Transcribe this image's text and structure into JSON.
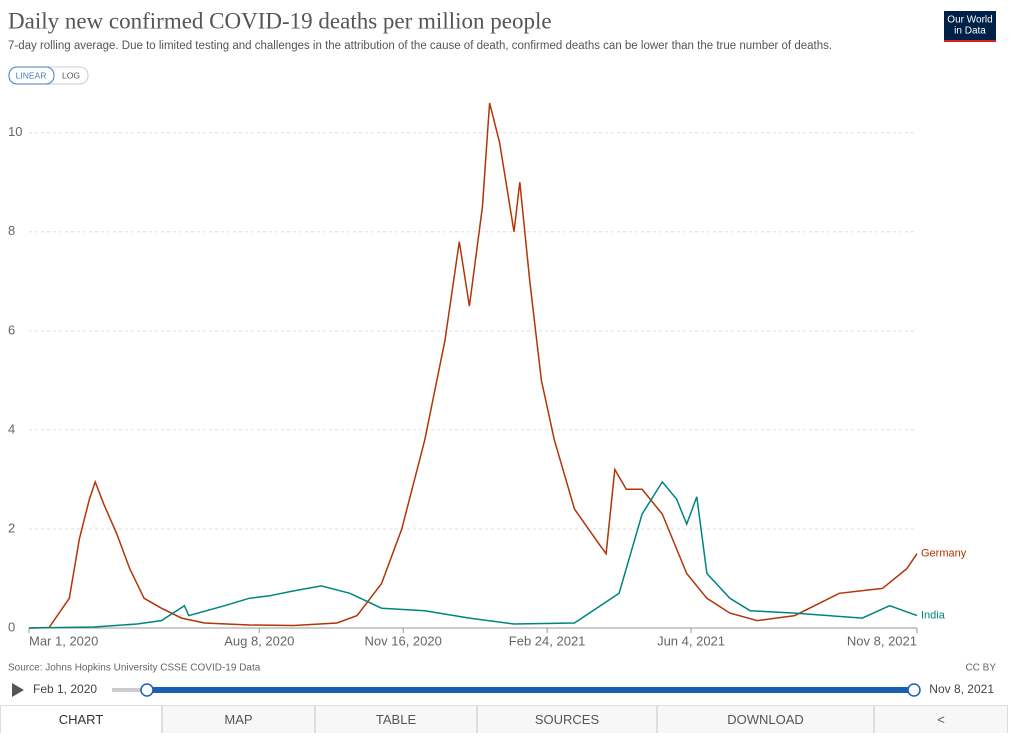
{
  "chart_data": {
    "type": "line",
    "title": "Daily new confirmed COVID-19 deaths per million people",
    "subtitle": "7-day rolling average. Due to limited testing and challenges in the attribution of the cause of death, confirmed deaths can be lower than the true number of deaths.",
    "xlim": [
      "2020-03-01",
      "2021-11-08"
    ],
    "xticks": [
      {
        "value": "2020-03-01",
        "label": "Mar 1, 2020"
      },
      {
        "value": "2020-08-08",
        "label": "Aug 8, 2020"
      },
      {
        "value": "2020-11-16",
        "label": "Nov 16, 2020"
      },
      {
        "value": "2021-02-24",
        "label": "Feb 24, 2021"
      },
      {
        "value": "2021-06-04",
        "label": "Jun 4, 2021"
      },
      {
        "value": "2021-11-08",
        "label": "Nov 8, 2021"
      }
    ],
    "ylim": [
      0,
      10.6
    ],
    "yticks": [
      0,
      2,
      4,
      6,
      8,
      10
    ],
    "grid": true,
    "series": [
      {
        "name": "Germany",
        "color": "#b13507",
        "x": [
          "2020-03-01",
          "2020-03-15",
          "2020-03-29",
          "2020-04-05",
          "2020-04-12",
          "2020-04-16",
          "2020-04-22",
          "2020-05-01",
          "2020-05-10",
          "2020-05-20",
          "2020-06-01",
          "2020-06-15",
          "2020-07-01",
          "2020-08-01",
          "2020-09-01",
          "2020-10-01",
          "2020-10-15",
          "2020-11-01",
          "2020-11-15",
          "2020-12-01",
          "2020-12-15",
          "2020-12-25",
          "2021-01-01",
          "2021-01-10",
          "2021-01-15",
          "2021-01-22",
          "2021-02-01",
          "2021-02-05",
          "2021-02-12",
          "2021-02-20",
          "2021-03-01",
          "2021-03-15",
          "2021-04-01",
          "2021-04-06",
          "2021-04-12",
          "2021-04-20",
          "2021-05-01",
          "2021-05-15",
          "2021-06-01",
          "2021-06-15",
          "2021-07-01",
          "2021-07-20",
          "2021-08-15",
          "2021-09-15",
          "2021-10-15",
          "2021-11-01",
          "2021-11-08"
        ],
        "values": [
          0,
          0.01,
          0.6,
          1.8,
          2.6,
          2.95,
          2.5,
          1.9,
          1.2,
          0.6,
          0.4,
          0.2,
          0.1,
          0.06,
          0.05,
          0.1,
          0.25,
          0.9,
          2.0,
          3.8,
          5.8,
          7.8,
          6.5,
          8.5,
          10.6,
          9.8,
          8.0,
          9.0,
          7.0,
          5.0,
          3.8,
          2.4,
          1.7,
          1.5,
          3.2,
          2.8,
          2.8,
          2.3,
          1.1,
          0.6,
          0.3,
          0.15,
          0.25,
          0.7,
          0.8,
          1.2,
          1.5
        ]
      },
      {
        "name": "India",
        "color": "#00847e",
        "x": [
          "2020-03-01",
          "2020-04-15",
          "2020-05-15",
          "2020-06-01",
          "2020-06-17",
          "2020-06-20",
          "2020-07-15",
          "2020-08-01",
          "2020-08-15",
          "2020-09-01",
          "2020-09-20",
          "2020-10-10",
          "2020-11-01",
          "2020-12-01",
          "2021-01-01",
          "2021-02-01",
          "2021-03-15",
          "2021-04-15",
          "2021-05-01",
          "2021-05-15",
          "2021-05-25",
          "2021-06-01",
          "2021-06-08",
          "2021-06-15",
          "2021-07-01",
          "2021-07-15",
          "2021-08-15",
          "2021-10-01",
          "2021-10-20",
          "2021-11-08"
        ],
        "values": [
          0,
          0.02,
          0.08,
          0.15,
          0.45,
          0.25,
          0.45,
          0.6,
          0.65,
          0.75,
          0.85,
          0.7,
          0.4,
          0.35,
          0.2,
          0.08,
          0.1,
          0.7,
          2.3,
          2.95,
          2.6,
          2.1,
          2.65,
          1.1,
          0.6,
          0.35,
          0.3,
          0.2,
          0.45,
          0.25
        ]
      }
    ]
  },
  "ui": {
    "logo": [
      "Our World",
      "in Data"
    ],
    "scale_buttons": [
      "LINEAR",
      "LOG"
    ],
    "source": "Source: Johns Hopkins University CSSE COVID-19 Data",
    "license": "CC BY",
    "timeline_start": "Feb 1, 2020",
    "timeline_end": "Nov 8, 2021",
    "tabs": [
      "CHART",
      "MAP",
      "TABLE",
      "SOURCES",
      "DOWNLOAD"
    ]
  }
}
